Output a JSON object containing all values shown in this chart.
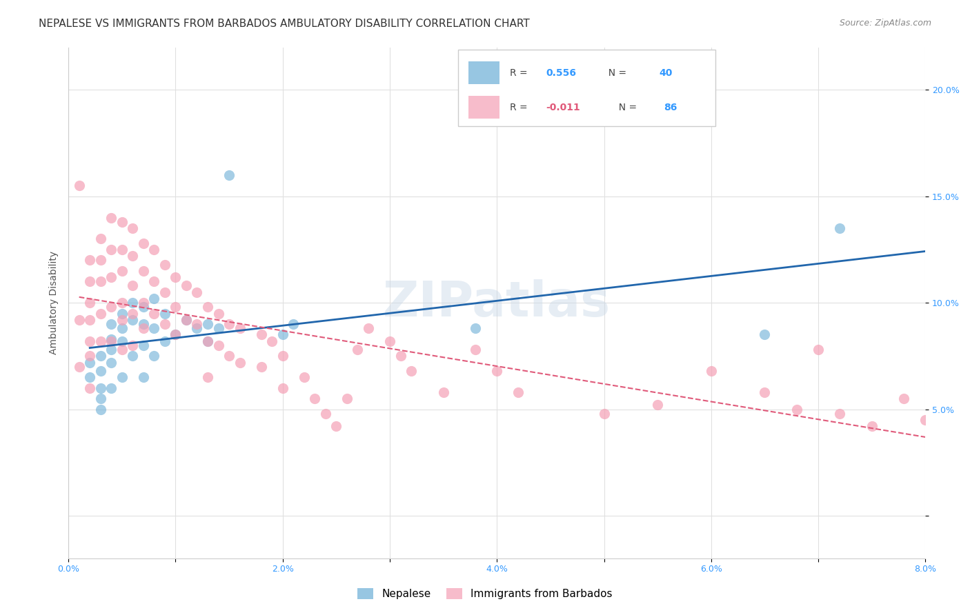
{
  "title": "NEPALESE VS IMMIGRANTS FROM BARBADOS AMBULATORY DISABILITY CORRELATION CHART",
  "source": "Source: ZipAtlas.com",
  "ylabel": "Ambulatory Disability",
  "xlabel_bottom": "",
  "watermark": "ZIPatlas",
  "xlim": [
    0.0,
    0.08
  ],
  "ylim": [
    -0.02,
    0.22
  ],
  "x_ticks": [
    0.0,
    0.01,
    0.02,
    0.03,
    0.04,
    0.05,
    0.06,
    0.07,
    0.08
  ],
  "x_tick_labels": [
    "0.0%",
    "",
    "2.0%",
    "",
    "4.0%",
    "",
    "6.0%",
    "",
    "8.0%"
  ],
  "y_ticks": [
    0.0,
    0.05,
    0.1,
    0.15,
    0.2
  ],
  "y_tick_labels": [
    "",
    "5.0%",
    "10.0%",
    "15.0%",
    "20.0%"
  ],
  "nepalese_R": 0.556,
  "nepalese_N": 40,
  "barbados_R": -0.011,
  "barbados_N": 86,
  "blue_color": "#6baed6",
  "pink_color": "#f4a0b5",
  "blue_line_color": "#2166ac",
  "pink_line_color": "#e05a7a",
  "nepalese_x": [
    0.002,
    0.002,
    0.003,
    0.003,
    0.003,
    0.003,
    0.003,
    0.004,
    0.004,
    0.004,
    0.004,
    0.004,
    0.005,
    0.005,
    0.005,
    0.005,
    0.006,
    0.006,
    0.006,
    0.007,
    0.007,
    0.007,
    0.007,
    0.008,
    0.008,
    0.008,
    0.009,
    0.009,
    0.01,
    0.011,
    0.012,
    0.013,
    0.013,
    0.014,
    0.015,
    0.02,
    0.021,
    0.038,
    0.065,
    0.072
  ],
  "nepalese_y": [
    0.065,
    0.072,
    0.075,
    0.068,
    0.06,
    0.055,
    0.05,
    0.09,
    0.083,
    0.078,
    0.072,
    0.06,
    0.095,
    0.088,
    0.082,
    0.065,
    0.1,
    0.092,
    0.075,
    0.098,
    0.09,
    0.08,
    0.065,
    0.102,
    0.088,
    0.075,
    0.095,
    0.082,
    0.085,
    0.092,
    0.088,
    0.09,
    0.082,
    0.088,
    0.16,
    0.085,
    0.09,
    0.088,
    0.085,
    0.135
  ],
  "barbados_x": [
    0.001,
    0.001,
    0.001,
    0.002,
    0.002,
    0.002,
    0.002,
    0.002,
    0.002,
    0.002,
    0.003,
    0.003,
    0.003,
    0.003,
    0.003,
    0.004,
    0.004,
    0.004,
    0.004,
    0.004,
    0.005,
    0.005,
    0.005,
    0.005,
    0.005,
    0.005,
    0.006,
    0.006,
    0.006,
    0.006,
    0.006,
    0.007,
    0.007,
    0.007,
    0.007,
    0.008,
    0.008,
    0.008,
    0.009,
    0.009,
    0.009,
    0.01,
    0.01,
    0.01,
    0.011,
    0.011,
    0.012,
    0.012,
    0.013,
    0.013,
    0.013,
    0.014,
    0.014,
    0.015,
    0.015,
    0.016,
    0.016,
    0.018,
    0.018,
    0.019,
    0.02,
    0.02,
    0.022,
    0.023,
    0.024,
    0.025,
    0.026,
    0.027,
    0.028,
    0.03,
    0.031,
    0.032,
    0.035,
    0.038,
    0.04,
    0.042,
    0.05,
    0.055,
    0.06,
    0.065,
    0.068,
    0.07,
    0.072,
    0.075,
    0.078,
    0.08
  ],
  "barbados_y": [
    0.155,
    0.092,
    0.07,
    0.12,
    0.11,
    0.1,
    0.092,
    0.082,
    0.075,
    0.06,
    0.13,
    0.12,
    0.11,
    0.095,
    0.082,
    0.14,
    0.125,
    0.112,
    0.098,
    0.082,
    0.138,
    0.125,
    0.115,
    0.1,
    0.092,
    0.078,
    0.135,
    0.122,
    0.108,
    0.095,
    0.08,
    0.128,
    0.115,
    0.1,
    0.088,
    0.125,
    0.11,
    0.095,
    0.118,
    0.105,
    0.09,
    0.112,
    0.098,
    0.085,
    0.108,
    0.092,
    0.105,
    0.09,
    0.098,
    0.082,
    0.065,
    0.095,
    0.08,
    0.09,
    0.075,
    0.088,
    0.072,
    0.085,
    0.07,
    0.082,
    0.075,
    0.06,
    0.065,
    0.055,
    0.048,
    0.042,
    0.055,
    0.078,
    0.088,
    0.082,
    0.075,
    0.068,
    0.058,
    0.078,
    0.068,
    0.058,
    0.048,
    0.052,
    0.068,
    0.058,
    0.05,
    0.078,
    0.048,
    0.042,
    0.055,
    0.045
  ],
  "background_color": "#ffffff",
  "grid_color": "#e0e0e0",
  "title_fontsize": 11,
  "axis_label_fontsize": 10,
  "tick_fontsize": 9,
  "legend_fontsize": 10,
  "source_fontsize": 9
}
